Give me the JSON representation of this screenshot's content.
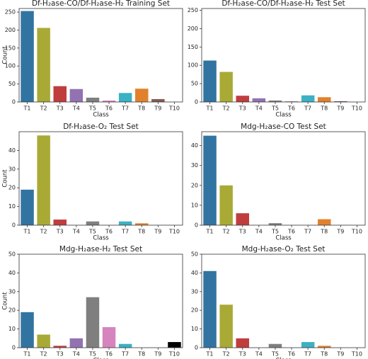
{
  "chart_data": [
    {
      "type": "bar",
      "title": "Df-H₂ase-CO/Df-H₂ase-H₂ Training Set",
      "xlabel": "Class",
      "ylabel": "Count",
      "categories": [
        "T1",
        "T2",
        "T3",
        "T4",
        "T5",
        "T6",
        "T7",
        "T8",
        "T9",
        "T10"
      ],
      "values": [
        253,
        206,
        44,
        36,
        12,
        4,
        25,
        37,
        8,
        0
      ],
      "colors": [
        "#3274a1",
        "#a9aa35",
        "#c03d3e",
        "#9372b2",
        "#7f7f7f",
        "#d684bd",
        "#3bb1c4",
        "#e1812c",
        "#845b53",
        "#000000"
      ],
      "ylim": [
        0,
        260
      ],
      "yticks": [
        0,
        50,
        100,
        150,
        200,
        250
      ]
    },
    {
      "type": "bar",
      "title": "Df-H₂ase-CO/Df-H₂ase-H₂ Test Set",
      "xlabel": "Class",
      "categories": [
        "T1",
        "T2",
        "T3",
        "T4",
        "T5",
        "T6",
        "T7",
        "T8",
        "T9",
        "T10"
      ],
      "values": [
        113,
        82,
        17,
        10,
        4,
        2,
        18,
        13,
        2,
        0
      ],
      "colors": [
        "#3274a1",
        "#a9aa35",
        "#c03d3e",
        "#9372b2",
        "#7f7f7f",
        "#d684bd",
        "#3bb1c4",
        "#e1812c",
        "#845b53",
        "#000000"
      ],
      "ylim": [
        0,
        255
      ],
      "yticks": [
        0,
        50,
        100,
        150,
        200,
        250
      ]
    },
    {
      "type": "bar",
      "title": "Df-H₂ase-O₂ Test Set",
      "xlabel": "Class",
      "ylabel": "Count",
      "categories": [
        "T1",
        "T2",
        "T3",
        "T4",
        "T5",
        "T6",
        "T7",
        "T8",
        "T9",
        "T10"
      ],
      "values": [
        19,
        48,
        3,
        0,
        2,
        0,
        2,
        1,
        0,
        0
      ],
      "colors": [
        "#3274a1",
        "#a9aa35",
        "#c03d3e",
        "#9372b2",
        "#7f7f7f",
        "#d684bd",
        "#3bb1c4",
        "#e1812c",
        "#845b53",
        "#000000"
      ],
      "ylim": [
        0,
        50
      ],
      "yticks": [
        0,
        10,
        20,
        30,
        40
      ]
    },
    {
      "type": "bar",
      "title": "Mdg-H₂ase-CO Test Set",
      "xlabel": "Class",
      "categories": [
        "T1",
        "T2",
        "T3",
        "T4",
        "T5",
        "T6",
        "T7",
        "T8",
        "T9",
        "T10"
      ],
      "values": [
        45,
        20,
        6,
        0,
        1,
        0,
        0,
        3,
        0,
        0
      ],
      "colors": [
        "#3274a1",
        "#a9aa35",
        "#c03d3e",
        "#9372b2",
        "#7f7f7f",
        "#d684bd",
        "#3bb1c4",
        "#e1812c",
        "#845b53",
        "#000000"
      ],
      "ylim": [
        0,
        47
      ],
      "yticks": [
        0,
        10,
        20,
        30,
        40
      ]
    },
    {
      "type": "bar",
      "title": "Mdg-H₂ase-H₂ Test Set",
      "xlabel": "Class",
      "ylabel": "Count",
      "categories": [
        "T1",
        "T2",
        "T3",
        "T4",
        "T5",
        "T6",
        "T7",
        "T8",
        "T9",
        "T10"
      ],
      "values": [
        19,
        7,
        1,
        5,
        27,
        11,
        2,
        0,
        0,
        3
      ],
      "colors": [
        "#3274a1",
        "#a9aa35",
        "#c03d3e",
        "#9372b2",
        "#7f7f7f",
        "#d684bd",
        "#3bb1c4",
        "#e1812c",
        "#845b53",
        "#000000"
      ],
      "ylim": [
        0,
        50
      ],
      "yticks": [
        0,
        10,
        20,
        30,
        40,
        50
      ]
    },
    {
      "type": "bar",
      "title": "Mdg-H₂ase-O₂ Test Set",
      "xlabel": "Class",
      "categories": [
        "T1",
        "T2",
        "T3",
        "T4",
        "T5",
        "T6",
        "T7",
        "T8",
        "T9",
        "T10"
      ],
      "values": [
        41,
        23,
        5,
        0,
        2,
        0,
        3,
        1,
        0,
        0
      ],
      "colors": [
        "#3274a1",
        "#a9aa35",
        "#c03d3e",
        "#9372b2",
        "#7f7f7f",
        "#d684bd",
        "#3bb1c4",
        "#e1812c",
        "#845b53",
        "#000000"
      ],
      "ylim": [
        0,
        50
      ],
      "yticks": [
        0,
        10,
        20,
        30,
        40,
        50
      ]
    }
  ]
}
